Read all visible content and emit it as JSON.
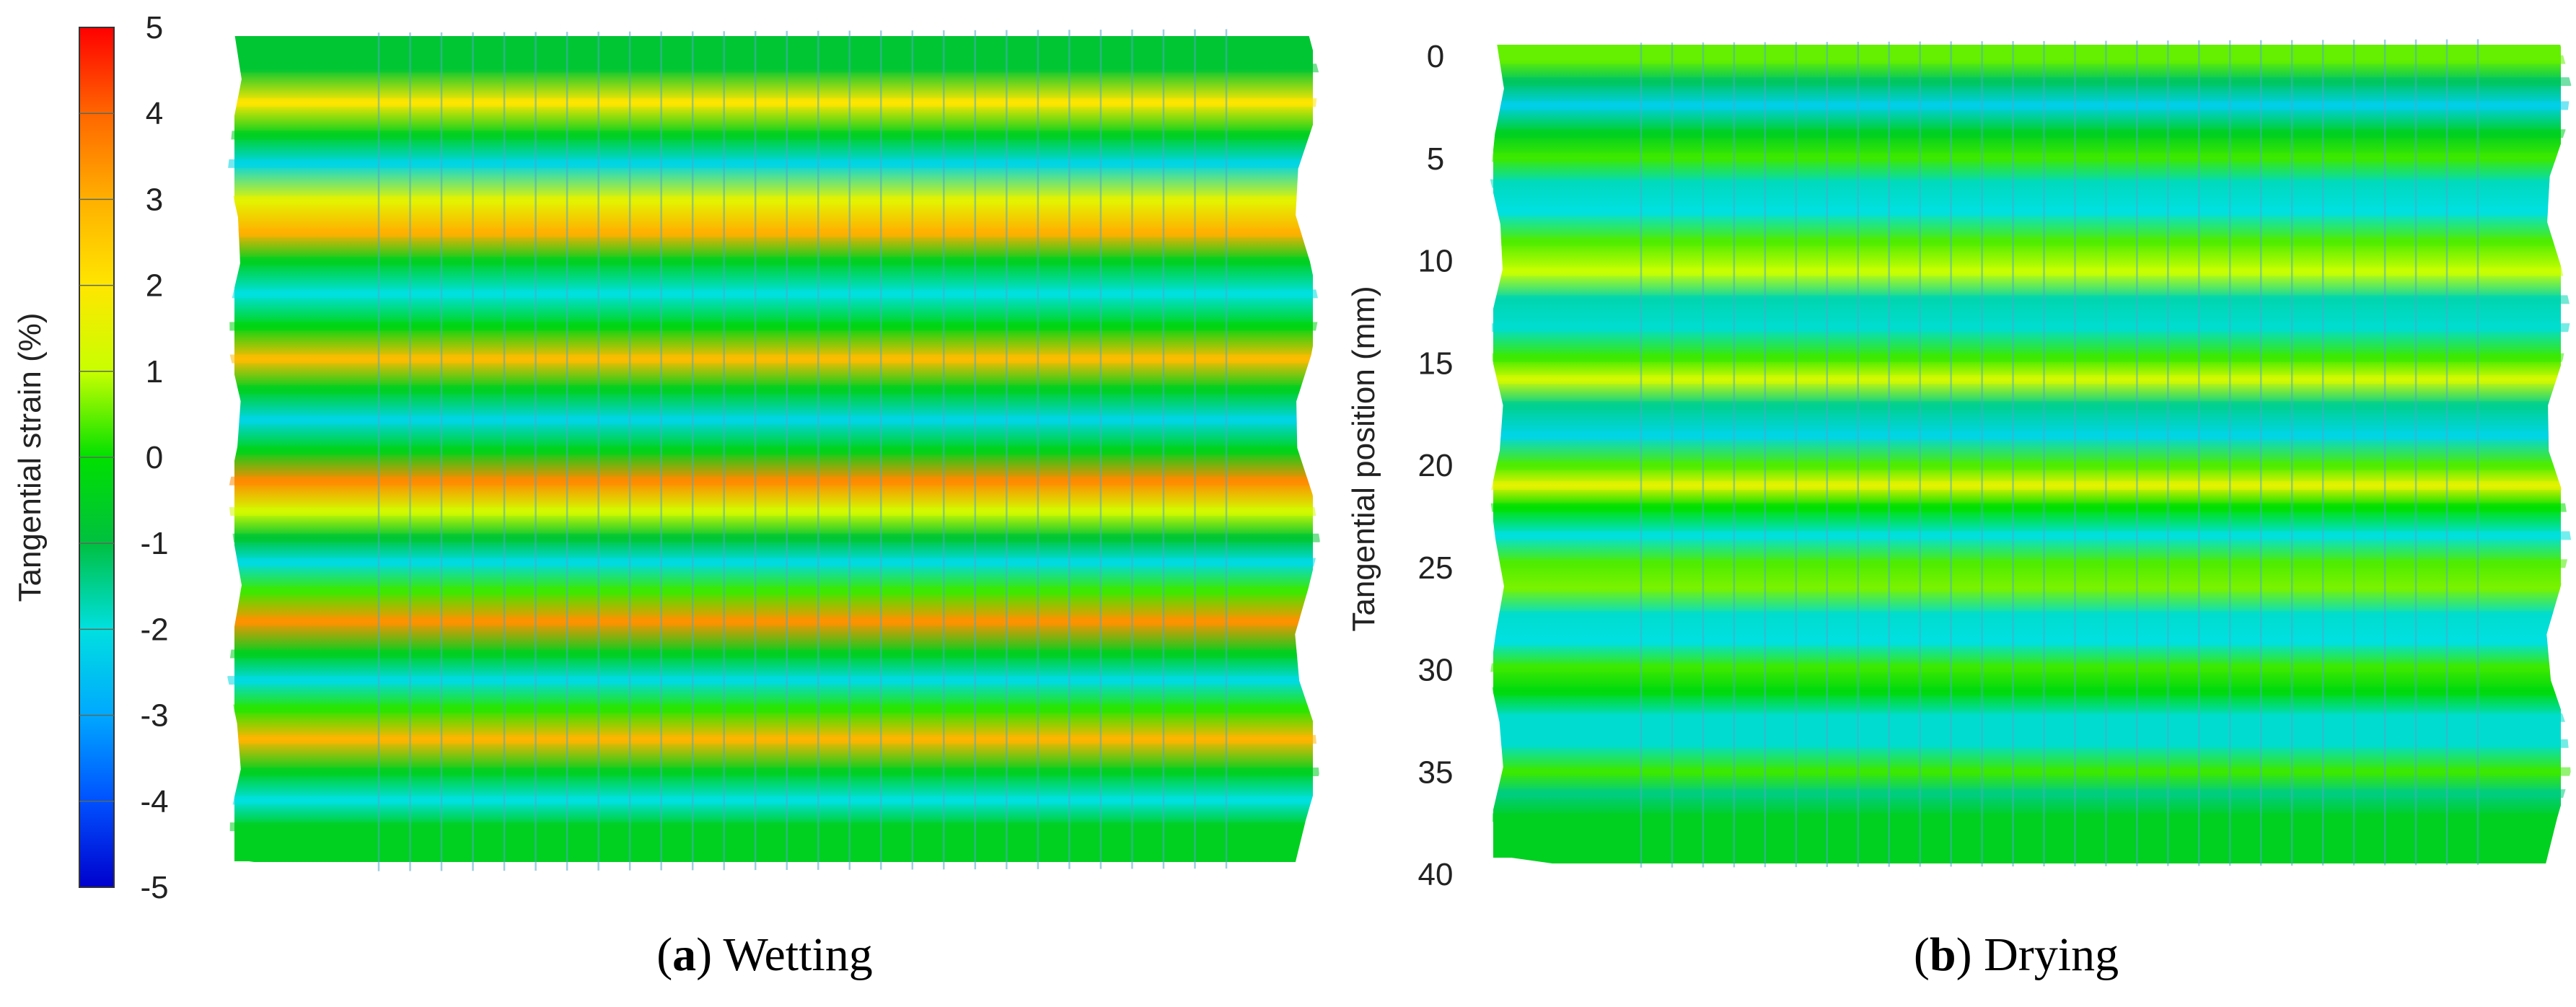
{
  "chart_data": [
    {
      "type": "heatmap",
      "panel_label": "a",
      "caption": "Wetting",
      "colorbar": {
        "label": "Tangential strain (%)",
        "range": [
          -5,
          5
        ],
        "ticks": [
          "5",
          "4",
          "3",
          "2",
          "1",
          "0",
          "-1",
          "-2",
          "-3",
          "-4",
          "-5"
        ],
        "colors": [
          "#ff0000",
          "#ff6600",
          "#ffb000",
          "#ffe600",
          "#c8ff00",
          "#00e000",
          "#00c040",
          "#00e0e0",
          "#00a8ff",
          "#0050ff",
          "#0000cc"
        ]
      },
      "bands": [
        {
          "pos": 1.5,
          "strain": -0.8
        },
        {
          "pos": 3.2,
          "strain": 2.0
        },
        {
          "pos": 4.8,
          "strain": -0.5
        },
        {
          "pos": 6.2,
          "strain": -2.2
        },
        {
          "pos": 8.0,
          "strain": 1.5
        },
        {
          "pos": 9.6,
          "strain": 3.0
        },
        {
          "pos": 11.0,
          "strain": -0.5
        },
        {
          "pos": 12.6,
          "strain": -2.0
        },
        {
          "pos": 14.2,
          "strain": -0.3
        },
        {
          "pos": 15.8,
          "strain": 2.8
        },
        {
          "pos": 17.3,
          "strain": -0.5
        },
        {
          "pos": 18.8,
          "strain": -2.2
        },
        {
          "pos": 20.3,
          "strain": -0.4
        },
        {
          "pos": 21.8,
          "strain": 3.5
        },
        {
          "pos": 23.3,
          "strain": 1.2
        },
        {
          "pos": 24.6,
          "strain": -0.8
        },
        {
          "pos": 25.8,
          "strain": -2.1
        },
        {
          "pos": 27.2,
          "strain": 0.3
        },
        {
          "pos": 28.7,
          "strain": 3.4
        },
        {
          "pos": 30.3,
          "strain": -0.5
        },
        {
          "pos": 31.6,
          "strain": -2.1
        },
        {
          "pos": 33.0,
          "strain": 0.2
        },
        {
          "pos": 34.5,
          "strain": 2.9
        },
        {
          "pos": 36.1,
          "strain": -0.5
        },
        {
          "pos": 37.5,
          "strain": -2.0
        },
        {
          "pos": 38.8,
          "strain": -0.5
        }
      ]
    },
    {
      "type": "heatmap",
      "panel_label": "b",
      "caption": "Drying",
      "ylabel": "Tangential position (mm)",
      "yticks": [
        "0",
        "5",
        "10",
        "15",
        "20",
        "25",
        "30",
        "35",
        "40"
      ],
      "ylim": [
        0,
        40
      ],
      "bands": [
        {
          "pos": 0.6,
          "strain": 0.5
        },
        {
          "pos": 1.7,
          "strain": -1.2
        },
        {
          "pos": 2.9,
          "strain": -2.3
        },
        {
          "pos": 4.3,
          "strain": -0.5
        },
        {
          "pos": 5.5,
          "strain": 0.3
        },
        {
          "pos": 6.8,
          "strain": -1.8
        },
        {
          "pos": 8.2,
          "strain": -2.0
        },
        {
          "pos": 9.7,
          "strain": 0.4
        },
        {
          "pos": 11.2,
          "strain": 1.0
        },
        {
          "pos": 12.6,
          "strain": -1.7
        },
        {
          "pos": 14.0,
          "strain": -1.9
        },
        {
          "pos": 15.5,
          "strain": 0.3
        },
        {
          "pos": 16.6,
          "strain": 1.2
        },
        {
          "pos": 17.9,
          "strain": -1.5
        },
        {
          "pos": 19.4,
          "strain": -2.2
        },
        {
          "pos": 20.9,
          "strain": 0.4
        },
        {
          "pos": 21.9,
          "strain": 1.5
        },
        {
          "pos": 23.0,
          "strain": 0.0
        },
        {
          "pos": 24.4,
          "strain": -2.0
        },
        {
          "pos": 25.8,
          "strain": 0.4
        },
        {
          "pos": 27.0,
          "strain": 0.6
        },
        {
          "pos": 28.4,
          "strain": -1.9
        },
        {
          "pos": 29.7,
          "strain": -2.0
        },
        {
          "pos": 31.0,
          "strain": 0.3
        },
        {
          "pos": 32.2,
          "strain": -0.2
        },
        {
          "pos": 33.5,
          "strain": -1.9
        },
        {
          "pos": 34.8,
          "strain": -1.9
        },
        {
          "pos": 36.2,
          "strain": 0.3
        },
        {
          "pos": 37.3,
          "strain": -1.4
        },
        {
          "pos": 38.5,
          "strain": -0.5
        }
      ]
    }
  ]
}
